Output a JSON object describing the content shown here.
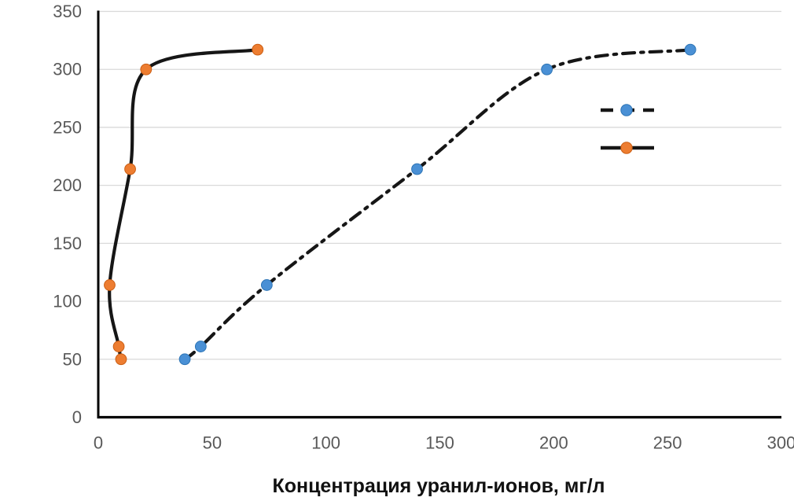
{
  "chart_data": {
    "type": "line",
    "title": "",
    "xlabel": "Концентрация уранил-ионов, мг/л",
    "ylabel": "",
    "xlim": [
      0,
      300
    ],
    "ylim": [
      0,
      350
    ],
    "x_ticks": [
      0,
      50,
      100,
      150,
      200,
      250,
      300
    ],
    "y_ticks": [
      0,
      50,
      100,
      150,
      200,
      250,
      300,
      350
    ],
    "grid": "horizontal-only",
    "legend": {
      "position": "inside-right",
      "labels_visible": false,
      "entries": [
        {
          "series": "blue-dash-dot-sample"
        },
        {
          "series": "orange-solid-sample"
        }
      ]
    },
    "series": [
      {
        "name": "blue-dash-dot",
        "line_style": "dash-dot",
        "line_color": "#161616",
        "marker_color": "#4a90d5",
        "marker_edge_color": "#2e75b6",
        "x": [
          38,
          45,
          74,
          140,
          197,
          260
        ],
        "y": [
          50,
          61,
          114,
          214,
          300,
          317
        ]
      },
      {
        "name": "orange-solid",
        "line_style": "solid",
        "line_color": "#161616",
        "marker_color": "#ed7d31",
        "marker_edge_color": "#cc5f14",
        "x": [
          10,
          9,
          5,
          14,
          21,
          70
        ],
        "y": [
          50,
          61,
          114,
          214,
          300,
          317
        ]
      }
    ],
    "colors": {
      "background": "#ffffff",
      "gridline": "#d9d9d9",
      "axis_line": "#000000",
      "tick_label": "#595959",
      "axis_title": "#111111"
    }
  }
}
